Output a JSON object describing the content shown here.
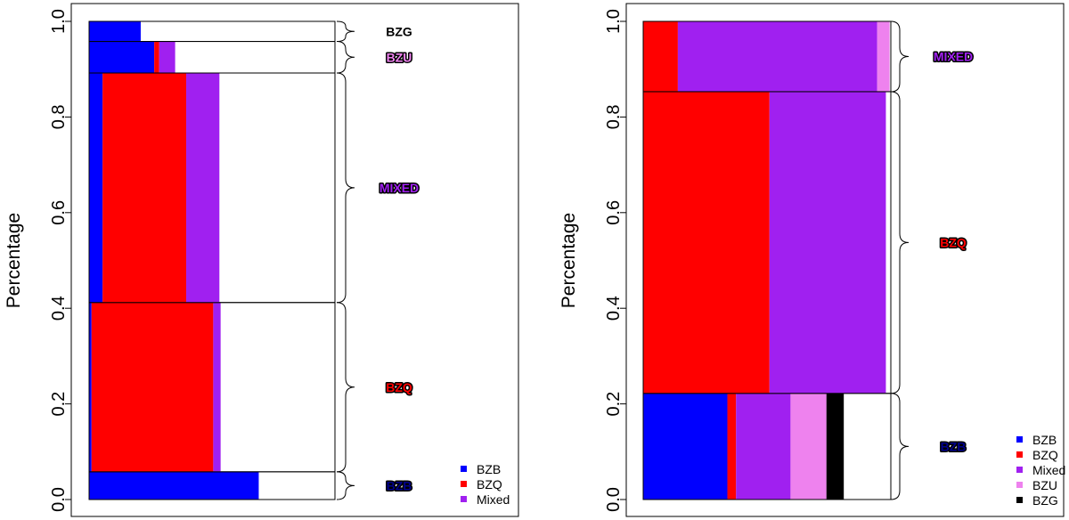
{
  "chart_data": [
    {
      "type": "mosaic",
      "ylabel": "Percentage",
      "ylim": [
        0,
        1
      ],
      "yticks": [
        "0.0",
        "0.2",
        "0.4",
        "0.6",
        "0.8",
        "1.0"
      ],
      "legend_position": "bottom-right",
      "legend": [
        {
          "name": "BZB",
          "color": "#0000ff"
        },
        {
          "name": "BZQ",
          "color": "#ff0000"
        },
        {
          "name": "Mixed",
          "color": "#a020f0"
        }
      ],
      "groups": [
        {
          "label": "BZB",
          "label_color": "#00008b",
          "y0": 0.0,
          "y1": 0.058,
          "segments": [
            {
              "name": "BZB",
              "start": 0.0,
              "end": 0.69,
              "color": "#0000ff"
            }
          ]
        },
        {
          "label": "BZQ",
          "label_color": "#ff0000",
          "y0": 0.058,
          "y1": 0.412,
          "segments": [
            {
              "name": "BZB",
              "start": 0.0,
              "end": 0.01,
              "color": "#0000ff"
            },
            {
              "name": "BZQ",
              "start": 0.01,
              "end": 0.505,
              "color": "#ff0000"
            },
            {
              "name": "Mixed",
              "start": 0.505,
              "end": 0.535,
              "color": "#a020f0"
            }
          ]
        },
        {
          "label": "MIXED",
          "label_color": "#a020f0",
          "y0": 0.412,
          "y1": 0.892,
          "segments": [
            {
              "name": "BZB",
              "start": 0.0,
              "end": 0.055,
              "color": "#0000ff"
            },
            {
              "name": "BZQ",
              "start": 0.055,
              "end": 0.395,
              "color": "#ff0000"
            },
            {
              "name": "Mixed",
              "start": 0.395,
              "end": 0.53,
              "color": "#a020f0"
            }
          ]
        },
        {
          "label": "BZU",
          "label_color": "#ee82ee",
          "y0": 0.892,
          "y1": 0.958,
          "segments": [
            {
              "name": "BZB",
              "start": 0.0,
              "end": 0.265,
              "color": "#0000ff"
            },
            {
              "name": "BZQ",
              "start": 0.265,
              "end": 0.285,
              "color": "#ff0000"
            },
            {
              "name": "Mixed",
              "start": 0.285,
              "end": 0.35,
              "color": "#a020f0"
            }
          ]
        },
        {
          "label": "BZG",
          "label_color": "#000000",
          "y0": 0.958,
          "y1": 1.0,
          "segments": [
            {
              "name": "BZB",
              "start": 0.0,
              "end": 0.21,
              "color": "#0000ff"
            }
          ]
        }
      ]
    },
    {
      "type": "mosaic",
      "ylabel": "Percentage",
      "ylim": [
        0,
        1
      ],
      "yticks": [
        "0.0",
        "0.2",
        "0.4",
        "0.6",
        "0.8",
        "1.0"
      ],
      "legend_position": "bottom-right",
      "legend": [
        {
          "name": "BZB",
          "color": "#0000ff"
        },
        {
          "name": "BZQ",
          "color": "#ff0000"
        },
        {
          "name": "Mixed",
          "color": "#a020f0"
        },
        {
          "name": "BZU",
          "color": "#ee82ee"
        },
        {
          "name": "BZG",
          "color": "#000000"
        }
      ],
      "groups": [
        {
          "label": "BZB",
          "label_color": "#00008b",
          "y0": 0.0,
          "y1": 0.222,
          "segments": [
            {
              "name": "BZB",
              "start": 0.0,
              "end": 0.34,
              "color": "#0000ff"
            },
            {
              "name": "BZQ",
              "start": 0.34,
              "end": 0.375,
              "color": "#ff0000"
            },
            {
              "name": "Mixed",
              "start": 0.375,
              "end": 0.595,
              "color": "#a020f0"
            },
            {
              "name": "BZU",
              "start": 0.595,
              "end": 0.74,
              "color": "#ee82ee"
            },
            {
              "name": "BZG",
              "start": 0.74,
              "end": 0.81,
              "color": "#000000"
            }
          ]
        },
        {
          "label": "BZQ",
          "label_color": "#ff0000",
          "y0": 0.222,
          "y1": 0.853,
          "segments": [
            {
              "name": "BZQ",
              "start": 0.0,
              "end": 0.51,
              "color": "#ff0000"
            },
            {
              "name": "Mixed",
              "start": 0.51,
              "end": 0.98,
              "color": "#a020f0"
            }
          ]
        },
        {
          "label": "MIXED",
          "label_color": "#a020f0",
          "y0": 0.853,
          "y1": 1.0,
          "segments": [
            {
              "name": "BZQ",
              "start": 0.0,
              "end": 0.14,
              "color": "#ff0000"
            },
            {
              "name": "Mixed",
              "start": 0.14,
              "end": 0.945,
              "color": "#a020f0"
            },
            {
              "name": "BZU",
              "start": 0.945,
              "end": 0.995,
              "color": "#ee82ee"
            }
          ]
        }
      ]
    }
  ]
}
